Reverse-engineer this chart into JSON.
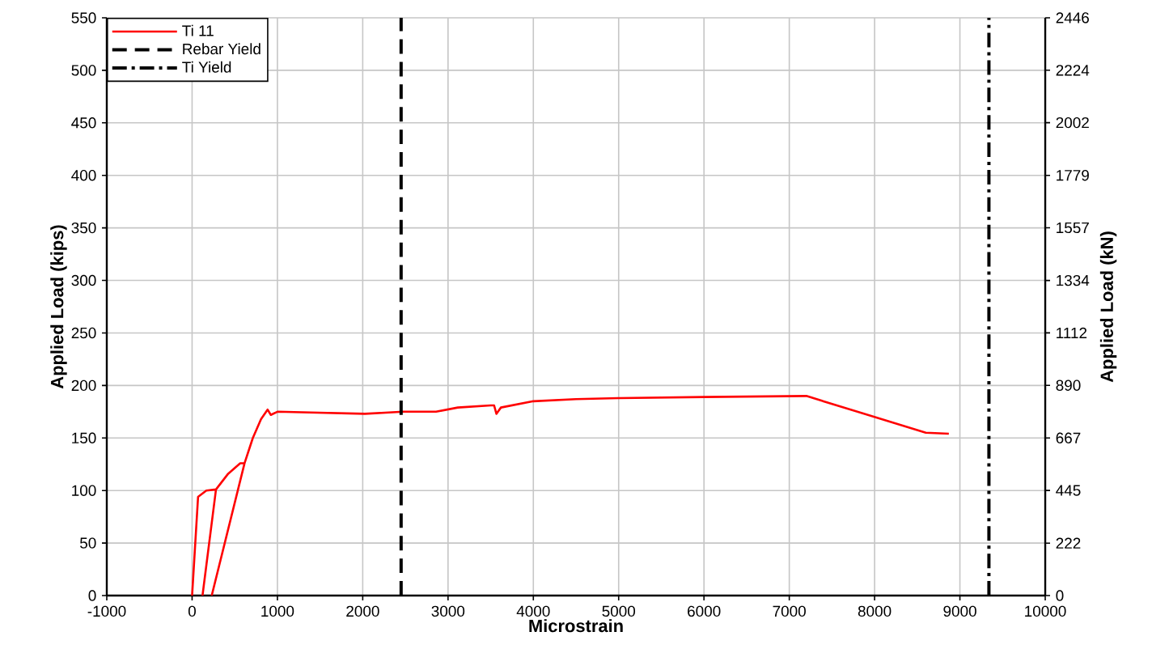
{
  "chart_data": {
    "type": "line",
    "xlabel": "Microstrain",
    "ylabel": "Applied Load (kips)",
    "y2label": "Applied Load (kN)",
    "xlim": [
      -1000,
      10000
    ],
    "xticks": [
      -1000,
      0,
      1000,
      2000,
      3000,
      4000,
      5000,
      6000,
      7000,
      8000,
      9000,
      10000
    ],
    "ylim": [
      0,
      550
    ],
    "yticks": [
      0,
      50,
      100,
      150,
      200,
      250,
      300,
      350,
      400,
      450,
      500,
      550
    ],
    "y2lim": [
      0,
      2446
    ],
    "y2ticks": [
      0,
      222,
      445,
      667,
      890,
      1112,
      1334,
      1557,
      1779,
      2002,
      2224,
      2446
    ],
    "series": [
      {
        "name": "Ti 11",
        "color": "#ff0000",
        "x": [
          0,
          70,
          167,
          280,
          122,
          280,
          423,
          564,
          615,
          230,
          615,
          712,
          808,
          885,
          923,
          1000,
          2025,
          2475,
          2860,
          3115,
          3500,
          3540,
          3567,
          3620,
          4000,
          4500,
          5000,
          6000,
          7200,
          8600,
          8870
        ],
        "values": [
          0,
          94,
          100,
          101,
          0,
          101,
          116,
          126,
          126,
          0,
          126,
          150,
          168,
          177,
          172,
          175,
          173,
          175,
          175,
          179,
          181,
          181,
          173,
          179,
          185,
          187,
          188,
          189,
          190,
          155,
          154
        ]
      },
      {
        "name": "Rebar Yield",
        "color": "#000000",
        "line_style": "dashed",
        "x": [
          2450,
          2450
        ],
        "values": [
          0,
          550
        ]
      },
      {
        "name": "Ti Yield",
        "color": "#000000",
        "line_style": "dashdot",
        "x": [
          9340,
          9340
        ],
        "values": [
          0,
          550
        ]
      }
    ],
    "grid": true,
    "legend": "top left",
    "marker": "none",
    "line_style": "solid"
  }
}
